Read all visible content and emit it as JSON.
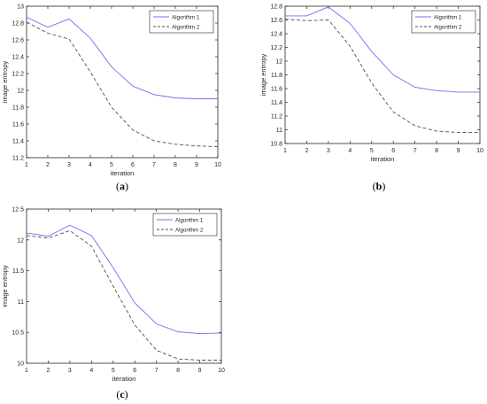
{
  "colors": {
    "series1": "#7070f0",
    "series2": "#505050",
    "axis": "#262626"
  },
  "chart_data": [
    {
      "type": "line",
      "panel": "a",
      "caption": "(a)",
      "xlabel": "iteration",
      "ylabel": "image entropy",
      "xlim": [
        1,
        10
      ],
      "ylim": [
        11.2,
        13
      ],
      "xticks": [
        1,
        2,
        3,
        4,
        5,
        6,
        7,
        8,
        9,
        10
      ],
      "yticks": [
        11.2,
        11.4,
        11.6,
        11.8,
        12,
        12.2,
        12.4,
        12.6,
        12.8,
        13
      ],
      "ytick_labels": [
        "11.2",
        "11.4",
        "11.6",
        "11.8",
        "12",
        "12.2",
        "12.4",
        "12.6",
        "12.8",
        "13"
      ],
      "x": [
        1,
        2,
        3,
        4,
        5,
        6,
        7,
        8,
        9,
        10
      ],
      "series": [
        {
          "name": "Algorithm 1",
          "style": "solid",
          "values": [
            12.87,
            12.75,
            12.85,
            12.62,
            12.28,
            12.05,
            11.95,
            11.91,
            11.9,
            11.9
          ]
        },
        {
          "name": "Algorithm 2",
          "style": "dashed",
          "values": [
            12.81,
            12.68,
            12.61,
            12.22,
            11.8,
            11.53,
            11.4,
            11.36,
            11.34,
            11.33
          ]
        }
      ],
      "legend": "top-right",
      "grid": false
    },
    {
      "type": "line",
      "panel": "b",
      "caption": "(b)",
      "xlabel": "iteration",
      "ylabel": "image entropy",
      "xlim": [
        1,
        10
      ],
      "ylim": [
        10.8,
        12.8
      ],
      "xticks": [
        1,
        2,
        3,
        4,
        5,
        6,
        7,
        8,
        9,
        10
      ],
      "yticks": [
        10.8,
        11,
        11.2,
        11.4,
        11.6,
        11.8,
        12,
        12.2,
        12.4,
        12.6,
        12.8
      ],
      "ytick_labels": [
        "10.8",
        "11",
        "11.2",
        "11.4",
        "11.6",
        "11.8",
        "12",
        "12.2",
        "12.4",
        "12.6",
        "12.8"
      ],
      "x": [
        1,
        2,
        3,
        4,
        5,
        6,
        7,
        8,
        9,
        10
      ],
      "series": [
        {
          "name": "Algorithm 1",
          "style": "solid",
          "values": [
            12.66,
            12.66,
            12.79,
            12.55,
            12.14,
            11.8,
            11.62,
            11.57,
            11.55,
            11.55
          ]
        },
        {
          "name": "Algorithm 2",
          "style": "dashed",
          "values": [
            12.61,
            12.59,
            12.6,
            12.22,
            11.68,
            11.26,
            11.06,
            10.98,
            10.96,
            10.96
          ]
        }
      ],
      "legend": "top-right",
      "grid": false
    },
    {
      "type": "line",
      "panel": "c",
      "caption": "(c)",
      "xlabel": "iteration",
      "ylabel": "image entropy",
      "xlim": [
        1,
        10
      ],
      "ylim": [
        10,
        12.5
      ],
      "xticks": [
        1,
        2,
        3,
        4,
        5,
        6,
        7,
        8,
        9,
        10
      ],
      "yticks": [
        10,
        10.5,
        11,
        11.5,
        12,
        12.5
      ],
      "ytick_labels": [
        "10",
        "10.5",
        "11",
        "11.5",
        "12",
        "12.5"
      ],
      "x": [
        1,
        2,
        3,
        4,
        5,
        6,
        7,
        8,
        9,
        10
      ],
      "series": [
        {
          "name": "Algorithm 1",
          "style": "solid",
          "values": [
            12.11,
            12.06,
            12.24,
            12.07,
            11.55,
            10.98,
            10.64,
            10.51,
            10.48,
            10.49
          ]
        },
        {
          "name": "Algorithm 2",
          "style": "dashed",
          "values": [
            12.07,
            12.03,
            12.15,
            11.9,
            11.25,
            10.62,
            10.21,
            10.07,
            10.05,
            10.05
          ]
        }
      ],
      "legend": "top-right",
      "grid": false
    }
  ]
}
